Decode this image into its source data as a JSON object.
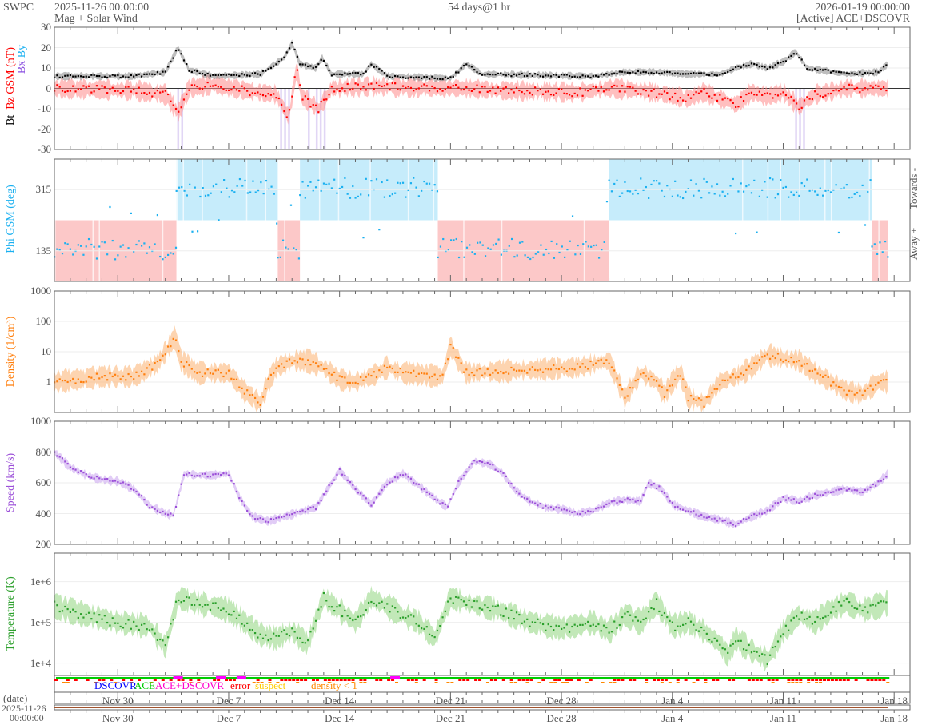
{
  "header": {
    "org": "SWPC",
    "start": "2025-11-26 00:00:00",
    "product": "Mag + Solar Wind",
    "span": "54 days@1 hr",
    "end": "2026-01-19 00:00:00",
    "source": "[Active] ACE+DSCOVR"
  },
  "legend": {
    "dscovr": "DSCOVR",
    "ace": "ACE",
    "both": "ACE+DSCOVR",
    "error": "error",
    "suspect": "suspect",
    "lowdens": "density < 1"
  },
  "date_axis": {
    "label": "(date)",
    "start_date": "2025-11-26",
    "start_time": "00:00:00"
  },
  "colors": {
    "bt": "#000000",
    "bz": "#ff0000",
    "bx": "#8a4fe0",
    "by": "#1ab0f0",
    "towards": "#c6ecfb",
    "away": "#fcc8c8",
    "density": "#ff7f0e",
    "speed": "#9b4fd8",
    "temp": "#2ca02c"
  },
  "chart_data": [
    {
      "type": "line",
      "title": "Bt / Bz GSM",
      "ylabel": "Bz GSM (nT)",
      "labels": {
        "bt": "Bt",
        "bz": "Bz GSM (nT)",
        "bx": "Bx",
        "by": "By"
      },
      "ylim": [
        -30,
        30
      ],
      "yticks": [
        "30",
        "20",
        "10",
        "0",
        "-10",
        "-20",
        "-30"
      ],
      "bt": [
        [
          0,
          6
        ],
        [
          5,
          6
        ],
        [
          7,
          8
        ],
        [
          7.8,
          20
        ],
        [
          8.5,
          9
        ],
        [
          10,
          6
        ],
        [
          13,
          7
        ],
        [
          14.5,
          15
        ],
        [
          15,
          22
        ],
        [
          15.5,
          12
        ],
        [
          16.5,
          10
        ],
        [
          16.9,
          15
        ],
        [
          17.5,
          7
        ],
        [
          19.5,
          7
        ],
        [
          20,
          12
        ],
        [
          21,
          6
        ],
        [
          25,
          5
        ],
        [
          26,
          12
        ],
        [
          27,
          7
        ],
        [
          34,
          6
        ],
        [
          36,
          8
        ],
        [
          38,
          8
        ],
        [
          40,
          7
        ],
        [
          42,
          7
        ],
        [
          43,
          10
        ],
        [
          44,
          12
        ],
        [
          45,
          10
        ],
        [
          46,
          13
        ],
        [
          46.8,
          18
        ],
        [
          47.5,
          10
        ],
        [
          50,
          7
        ],
        [
          52,
          8
        ],
        [
          52.6,
          12
        ]
      ],
      "bz": [
        [
          0,
          0
        ],
        [
          5,
          -1
        ],
        [
          7,
          -3
        ],
        [
          7.8,
          -12
        ],
        [
          8.5,
          0
        ],
        [
          10,
          2
        ],
        [
          12,
          -1
        ],
        [
          14,
          -3
        ],
        [
          14.8,
          -14
        ],
        [
          15.3,
          10
        ],
        [
          15.6,
          -4
        ],
        [
          16.7,
          -10
        ],
        [
          17.5,
          0
        ],
        [
          20,
          1
        ],
        [
          26,
          0
        ],
        [
          28,
          -1
        ],
        [
          33,
          -2
        ],
        [
          35,
          0
        ],
        [
          37,
          -1
        ],
        [
          40,
          -5
        ],
        [
          41,
          -2
        ],
        [
          43,
          -8
        ],
        [
          44,
          -2
        ],
        [
          45,
          -4
        ],
        [
          46,
          -2
        ],
        [
          47,
          -9
        ],
        [
          48,
          -3
        ],
        [
          50,
          0
        ],
        [
          52.6,
          0
        ]
      ]
    },
    {
      "type": "scatter",
      "title": "Phi GSM",
      "ylabel": "Phi GSM (deg)",
      "ylim": [
        45,
        405
      ],
      "yticks": [
        "315",
        "135"
      ],
      "right_labels": {
        "towards": "Towards -",
        "away": "Away +"
      },
      "sectors": [
        [
          0,
          7.7,
          "away"
        ],
        [
          7.7,
          14.1,
          "towards"
        ],
        [
          14.1,
          15.5,
          "away"
        ],
        [
          15.5,
          24.2,
          "towards"
        ],
        [
          24.2,
          35,
          "away"
        ],
        [
          35,
          51.6,
          "towards"
        ],
        [
          51.6,
          52.6,
          "away"
        ]
      ]
    },
    {
      "type": "line",
      "title": "Density",
      "ylabel": "Density (1/cm³)",
      "yscale": "log",
      "ylim": [
        0.1,
        1000
      ],
      "yticks": [
        "1000",
        "100",
        "10",
        "1"
      ],
      "values": [
        [
          0,
          1
        ],
        [
          3,
          1.5
        ],
        [
          5,
          1.5
        ],
        [
          6.5,
          4
        ],
        [
          7.6,
          30
        ],
        [
          8,
          5
        ],
        [
          9,
          2
        ],
        [
          11,
          2
        ],
        [
          12,
          0.5
        ],
        [
          13,
          0.2
        ],
        [
          13.5,
          1
        ],
        [
          14,
          3
        ],
        [
          15,
          5
        ],
        [
          16,
          5
        ],
        [
          17,
          3
        ],
        [
          18,
          1.2
        ],
        [
          19,
          1
        ],
        [
          20,
          1.5
        ],
        [
          21,
          3
        ],
        [
          22,
          2
        ],
        [
          24.5,
          1.5
        ],
        [
          25,
          15
        ],
        [
          25.5,
          5
        ],
        [
          26,
          2
        ],
        [
          30,
          2.5
        ],
        [
          33,
          3
        ],
        [
          35,
          5
        ],
        [
          36,
          0.3
        ],
        [
          37,
          2
        ],
        [
          38,
          1
        ],
        [
          38.5,
          0.4
        ],
        [
          39,
          1
        ],
        [
          39.5,
          2
        ],
        [
          40,
          0.3
        ],
        [
          41,
          0.2
        ],
        [
          42,
          1
        ],
        [
          43,
          1.5
        ],
        [
          44,
          3
        ],
        [
          45,
          8
        ],
        [
          46,
          6
        ],
        [
          47,
          5
        ],
        [
          48,
          2
        ],
        [
          49,
          1
        ],
        [
          50,
          0.5
        ],
        [
          51,
          0.4
        ],
        [
          52,
          1
        ],
        [
          52.6,
          1
        ]
      ]
    },
    {
      "type": "line",
      "title": "Speed",
      "ylabel": "Speed (km/s)",
      "ylim": [
        200,
        1000
      ],
      "yticks": [
        "1000",
        "800",
        "600",
        "400",
        "200"
      ],
      "values": [
        [
          0,
          800
        ],
        [
          1,
          700
        ],
        [
          2,
          650
        ],
        [
          3,
          620
        ],
        [
          4,
          610
        ],
        [
          5,
          560
        ],
        [
          6,
          450
        ],
        [
          7,
          400
        ],
        [
          7.5,
          390
        ],
        [
          8.2,
          660
        ],
        [
          9,
          650
        ],
        [
          10,
          650
        ],
        [
          11,
          660
        ],
        [
          11.7,
          500
        ],
        [
          12.5,
          380
        ],
        [
          13.5,
          350
        ],
        [
          14.5,
          380
        ],
        [
          15.5,
          410
        ],
        [
          16.5,
          440
        ],
        [
          17.5,
          600
        ],
        [
          18,
          680
        ],
        [
          19,
          560
        ],
        [
          20,
          460
        ],
        [
          21,
          600
        ],
        [
          22,
          660
        ],
        [
          23,
          580
        ],
        [
          24,
          500
        ],
        [
          24.8,
          440
        ],
        [
          25.5,
          600
        ],
        [
          26.5,
          740
        ],
        [
          27.5,
          720
        ],
        [
          28.3,
          660
        ],
        [
          29,
          560
        ],
        [
          30,
          480
        ],
        [
          31,
          440
        ],
        [
          32,
          430
        ],
        [
          33,
          400
        ],
        [
          34,
          420
        ],
        [
          35,
          470
        ],
        [
          36,
          490
        ],
        [
          37,
          480
        ],
        [
          37.5,
          600
        ],
        [
          38.3,
          560
        ],
        [
          39,
          460
        ],
        [
          40,
          420
        ],
        [
          41,
          380
        ],
        [
          42,
          360
        ],
        [
          43,
          330
        ],
        [
          44,
          380
        ],
        [
          45,
          420
        ],
        [
          46,
          500
        ],
        [
          47,
          480
        ],
        [
          48,
          520
        ],
        [
          49,
          540
        ],
        [
          50,
          560
        ],
        [
          51,
          540
        ],
        [
          52,
          600
        ],
        [
          52.6,
          660
        ]
      ]
    },
    {
      "type": "line",
      "title": "Temperature",
      "ylabel": "Temperature (K)",
      "yscale": "log",
      "ylim": [
        5000,
        5000000
      ],
      "yticks": [
        "1e+6",
        "1e+5",
        "1e+4"
      ],
      "values": [
        [
          0,
          250000
        ],
        [
          2,
          150000
        ],
        [
          4,
          100000
        ],
        [
          6,
          80000
        ],
        [
          7,
          25000
        ],
        [
          7.8,
          400000
        ],
        [
          9,
          300000
        ],
        [
          11,
          200000
        ],
        [
          12,
          100000
        ],
        [
          13,
          50000
        ],
        [
          14,
          40000
        ],
        [
          15,
          60000
        ],
        [
          16,
          30000
        ],
        [
          17,
          400000
        ],
        [
          18,
          200000
        ],
        [
          19,
          100000
        ],
        [
          20,
          400000
        ],
        [
          21,
          250000
        ],
        [
          22,
          150000
        ],
        [
          23,
          100000
        ],
        [
          24,
          40000
        ],
        [
          25,
          400000
        ],
        [
          26,
          300000
        ],
        [
          28,
          200000
        ],
        [
          30,
          100000
        ],
        [
          32,
          70000
        ],
        [
          34,
          100000
        ],
        [
          35,
          60000
        ],
        [
          36,
          150000
        ],
        [
          37,
          100000
        ],
        [
          38,
          300000
        ],
        [
          39,
          80000
        ],
        [
          40,
          100000
        ],
        [
          41,
          60000
        ],
        [
          42,
          30000
        ],
        [
          42.5,
          15000
        ],
        [
          43,
          40000
        ],
        [
          44,
          20000
        ],
        [
          45,
          12000
        ],
        [
          46,
          60000
        ],
        [
          47,
          150000
        ],
        [
          48,
          100000
        ],
        [
          49,
          200000
        ],
        [
          50,
          300000
        ],
        [
          51,
          200000
        ],
        [
          52,
          250000
        ],
        [
          52.6,
          300000
        ]
      ]
    }
  ],
  "x_axis": {
    "days": 54,
    "data_end_day": 52.6,
    "labels": [
      [
        "Nov 30",
        4
      ],
      [
        "Dec 7",
        11
      ],
      [
        "Dec 14",
        18
      ],
      [
        "Dec 21",
        25
      ],
      [
        "Dec 28",
        32
      ],
      [
        "Jan 4",
        39
      ],
      [
        "Jan 11",
        46
      ],
      [
        "Jan 18",
        53
      ]
    ]
  }
}
